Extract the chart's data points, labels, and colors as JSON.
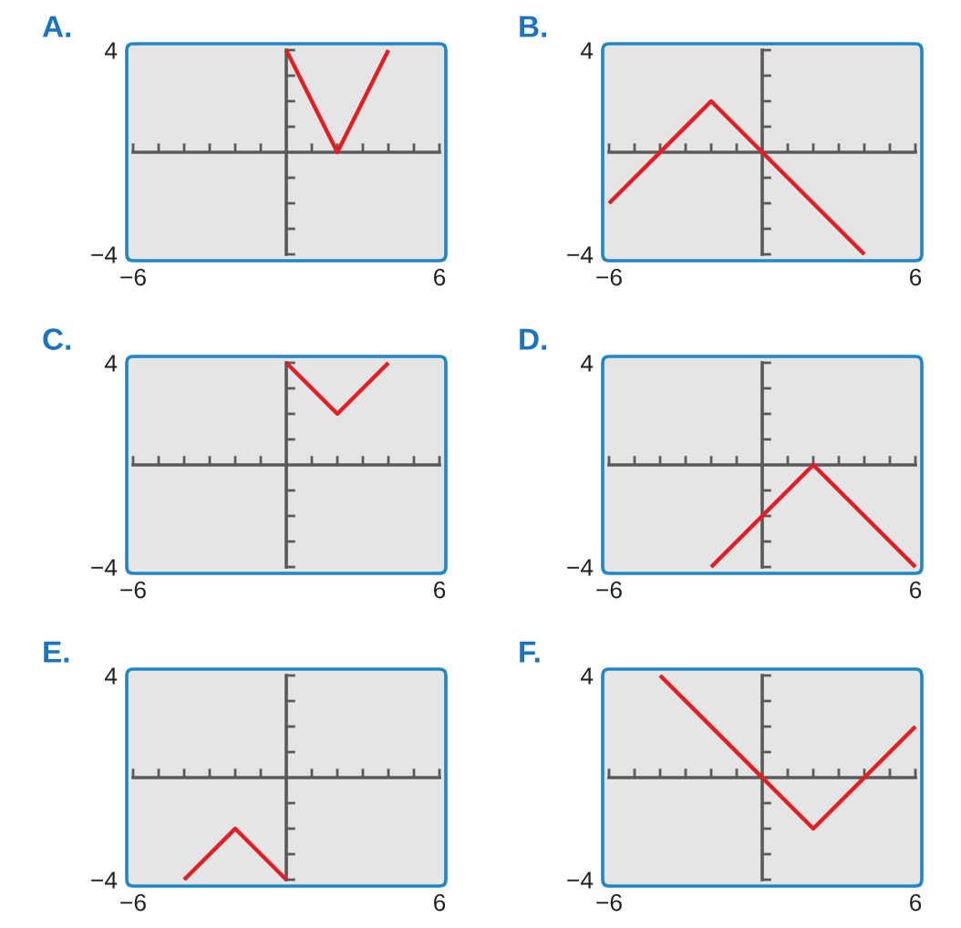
{
  "chart_data": [
    {
      "type": "line",
      "title": "A.",
      "x": [
        0,
        2,
        4
      ],
      "values": [
        4,
        0,
        4
      ],
      "color": "#e31e24",
      "xlim": [
        -6.25,
        6.25
      ],
      "ylim": [
        -4.25,
        4.25
      ],
      "xticks": [
        {
          "value": -6,
          "label": "−6"
        },
        {
          "value": -5,
          "label": null
        },
        {
          "value": -4,
          "label": null
        },
        {
          "value": -3,
          "label": null
        },
        {
          "value": -2,
          "label": null
        },
        {
          "value": -1,
          "label": null
        },
        {
          "value": 1,
          "label": null
        },
        {
          "value": 2,
          "label": null
        },
        {
          "value": 3,
          "label": null
        },
        {
          "value": 4,
          "label": null
        },
        {
          "value": 5,
          "label": null
        },
        {
          "value": 6,
          "label": "6"
        }
      ],
      "yticks": [
        {
          "value": -4,
          "label": "−4"
        },
        {
          "value": -3,
          "label": null
        },
        {
          "value": -2,
          "label": null
        },
        {
          "value": -1,
          "label": null
        },
        {
          "value": 1,
          "label": null
        },
        {
          "value": 2,
          "label": null
        },
        {
          "value": 3,
          "label": null
        },
        {
          "value": 4,
          "label": "4"
        }
      ]
    },
    {
      "type": "line",
      "title": "B.",
      "x": [
        -6,
        -2,
        4
      ],
      "values": [
        -2,
        2,
        -4
      ],
      "color": "#e31e24",
      "xlim": [
        -6.25,
        6.25
      ],
      "ylim": [
        -4.25,
        4.25
      ],
      "xticks": [
        {
          "value": -6,
          "label": "−6"
        },
        {
          "value": -5,
          "label": null
        },
        {
          "value": -4,
          "label": null
        },
        {
          "value": -3,
          "label": null
        },
        {
          "value": -2,
          "label": null
        },
        {
          "value": -1,
          "label": null
        },
        {
          "value": 1,
          "label": null
        },
        {
          "value": 2,
          "label": null
        },
        {
          "value": 3,
          "label": null
        },
        {
          "value": 4,
          "label": null
        },
        {
          "value": 5,
          "label": null
        },
        {
          "value": 6,
          "label": "6"
        }
      ],
      "yticks": [
        {
          "value": -4,
          "label": "−4"
        },
        {
          "value": -3,
          "label": null
        },
        {
          "value": -2,
          "label": null
        },
        {
          "value": -1,
          "label": null
        },
        {
          "value": 1,
          "label": null
        },
        {
          "value": 2,
          "label": null
        },
        {
          "value": 3,
          "label": null
        },
        {
          "value": 4,
          "label": "4"
        }
      ]
    },
    {
      "type": "line",
      "title": "C.",
      "x": [
        0,
        2,
        4
      ],
      "values": [
        4,
        2,
        4
      ],
      "color": "#e31e24",
      "xlim": [
        -6.25,
        6.25
      ],
      "ylim": [
        -4.25,
        4.25
      ],
      "xticks": [
        {
          "value": -6,
          "label": "−6"
        },
        {
          "value": -5,
          "label": null
        },
        {
          "value": -4,
          "label": null
        },
        {
          "value": -3,
          "label": null
        },
        {
          "value": -2,
          "label": null
        },
        {
          "value": -1,
          "label": null
        },
        {
          "value": 1,
          "label": null
        },
        {
          "value": 2,
          "label": null
        },
        {
          "value": 3,
          "label": null
        },
        {
          "value": 4,
          "label": null
        },
        {
          "value": 5,
          "label": null
        },
        {
          "value": 6,
          "label": "6"
        }
      ],
      "yticks": [
        {
          "value": -4,
          "label": "−4"
        },
        {
          "value": -3,
          "label": null
        },
        {
          "value": -2,
          "label": null
        },
        {
          "value": -1,
          "label": null
        },
        {
          "value": 1,
          "label": null
        },
        {
          "value": 2,
          "label": null
        },
        {
          "value": 3,
          "label": null
        },
        {
          "value": 4,
          "label": "4"
        }
      ]
    },
    {
      "type": "line",
      "title": "D.",
      "x": [
        -2,
        2,
        6
      ],
      "values": [
        -4,
        0,
        -4
      ],
      "color": "#e31e24",
      "xlim": [
        -6.25,
        6.25
      ],
      "ylim": [
        -4.25,
        4.25
      ],
      "xticks": [
        {
          "value": -6,
          "label": "−6"
        },
        {
          "value": -5,
          "label": null
        },
        {
          "value": -4,
          "label": null
        },
        {
          "value": -3,
          "label": null
        },
        {
          "value": -2,
          "label": null
        },
        {
          "value": -1,
          "label": null
        },
        {
          "value": 1,
          "label": null
        },
        {
          "value": 2,
          "label": null
        },
        {
          "value": 3,
          "label": null
        },
        {
          "value": 4,
          "label": null
        },
        {
          "value": 5,
          "label": null
        },
        {
          "value": 6,
          "label": "6"
        }
      ],
      "yticks": [
        {
          "value": -4,
          "label": "−4"
        },
        {
          "value": -3,
          "label": null
        },
        {
          "value": -2,
          "label": null
        },
        {
          "value": -1,
          "label": null
        },
        {
          "value": 1,
          "label": null
        },
        {
          "value": 2,
          "label": null
        },
        {
          "value": 3,
          "label": null
        },
        {
          "value": 4,
          "label": "4"
        }
      ]
    },
    {
      "type": "line",
      "title": "E.",
      "x": [
        -4,
        -2,
        0
      ],
      "values": [
        -4,
        -2,
        -4
      ],
      "color": "#e31e24",
      "xlim": [
        -6.25,
        6.25
      ],
      "ylim": [
        -4.25,
        4.25
      ],
      "xticks": [
        {
          "value": -6,
          "label": "−6"
        },
        {
          "value": -5,
          "label": null
        },
        {
          "value": -4,
          "label": null
        },
        {
          "value": -3,
          "label": null
        },
        {
          "value": -2,
          "label": null
        },
        {
          "value": -1,
          "label": null
        },
        {
          "value": 1,
          "label": null
        },
        {
          "value": 2,
          "label": null
        },
        {
          "value": 3,
          "label": null
        },
        {
          "value": 4,
          "label": null
        },
        {
          "value": 5,
          "label": null
        },
        {
          "value": 6,
          "label": "6"
        }
      ],
      "yticks": [
        {
          "value": -4,
          "label": "−4"
        },
        {
          "value": -3,
          "label": null
        },
        {
          "value": -2,
          "label": null
        },
        {
          "value": -1,
          "label": null
        },
        {
          "value": 1,
          "label": null
        },
        {
          "value": 2,
          "label": null
        },
        {
          "value": 3,
          "label": null
        },
        {
          "value": 4,
          "label": "4"
        }
      ]
    },
    {
      "type": "line",
      "title": "F.",
      "x": [
        -4,
        2,
        6
      ],
      "values": [
        4,
        -2,
        2
      ],
      "color": "#e31e24",
      "xlim": [
        -6.25,
        6.25
      ],
      "ylim": [
        -4.25,
        4.25
      ],
      "xticks": [
        {
          "value": -6,
          "label": "−6"
        },
        {
          "value": -5,
          "label": null
        },
        {
          "value": -4,
          "label": null
        },
        {
          "value": -3,
          "label": null
        },
        {
          "value": -2,
          "label": null
        },
        {
          "value": -1,
          "label": null
        },
        {
          "value": 1,
          "label": null
        },
        {
          "value": 2,
          "label": null
        },
        {
          "value": 3,
          "label": null
        },
        {
          "value": 4,
          "label": null
        },
        {
          "value": 5,
          "label": null
        },
        {
          "value": 6,
          "label": "6"
        }
      ],
      "yticks": [
        {
          "value": -4,
          "label": "−4"
        },
        {
          "value": -3,
          "label": null
        },
        {
          "value": -2,
          "label": null
        },
        {
          "value": -1,
          "label": null
        },
        {
          "value": 1,
          "label": null
        },
        {
          "value": 2,
          "label": null
        },
        {
          "value": 3,
          "label": null
        },
        {
          "value": 4,
          "label": "4"
        }
      ]
    }
  ]
}
